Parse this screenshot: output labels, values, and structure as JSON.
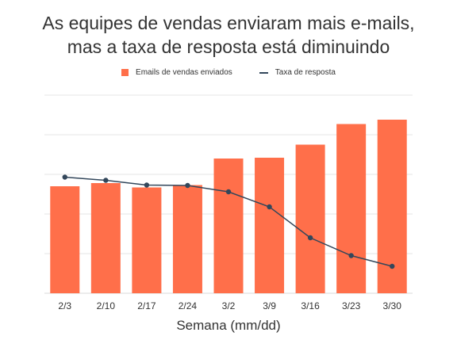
{
  "title": {
    "line1": "As equipes de vendas enviaram mais e-mails,",
    "line2": "mas a taxa de resposta está diminuindo"
  },
  "colors": {
    "bar": "#ff6f4a",
    "line": "#33475b",
    "grid": "#e6e6e6"
  },
  "chart_data": {
    "type": "bar",
    "title": "As equipes de vendas enviaram mais e-mails, mas a taxa de resposta está diminuindo",
    "xlabel": "Semana (mm/dd)",
    "ylabel": "",
    "legend_position": "top-center",
    "grid": true,
    "categories": [
      "2/3",
      "2/10",
      "2/17",
      "2/24",
      "3/2",
      "3/9",
      "3/16",
      "3/23",
      "3/30"
    ],
    "ylim": [
      0,
      5
    ],
    "series": [
      {
        "name": "Emails de vendas enviados",
        "type": "bar",
        "values": [
          2.7,
          2.78,
          2.67,
          2.73,
          3.4,
          3.42,
          3.75,
          4.27,
          4.38
        ]
      },
      {
        "name": "Taxa de resposta",
        "type": "line",
        "values": [
          2.93,
          2.85,
          2.73,
          2.72,
          2.56,
          2.18,
          1.4,
          0.95,
          0.68
        ]
      }
    ]
  }
}
